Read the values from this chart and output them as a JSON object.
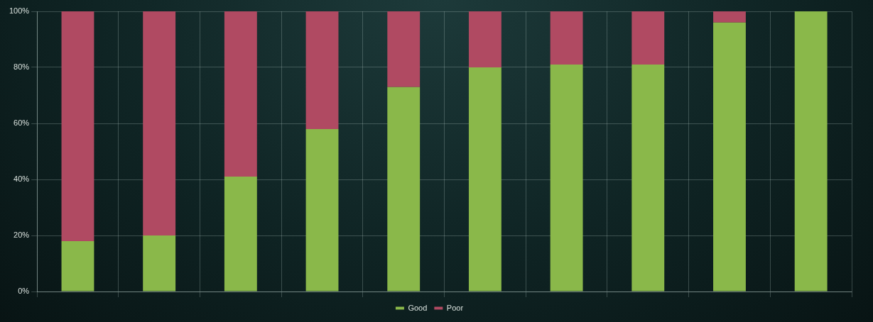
{
  "chart_data": {
    "type": "bar",
    "stacked": true,
    "categories": [
      null,
      null,
      null,
      null,
      null,
      null,
      null,
      null,
      null,
      null
    ],
    "series": [
      {
        "name": "Good",
        "color": "#8ab84a",
        "values": [
          18,
          20,
          41,
          58,
          73,
          80,
          81,
          81,
          96,
          100
        ]
      },
      {
        "name": "Poor",
        "color": "#b04a62",
        "values": [
          82,
          80,
          59,
          42,
          27,
          20,
          19,
          19,
          4,
          0
        ]
      }
    ],
    "ylim": [
      0,
      100
    ],
    "yticks": [
      {
        "value": 0,
        "label": "0%"
      },
      {
        "value": 20,
        "label": "20%"
      },
      {
        "value": 40,
        "label": "40%"
      },
      {
        "value": 60,
        "label": "60%"
      },
      {
        "value": 80,
        "label": "80%"
      },
      {
        "value": 100,
        "label": "100%"
      }
    ],
    "grid": true,
    "legend": "bottom"
  }
}
